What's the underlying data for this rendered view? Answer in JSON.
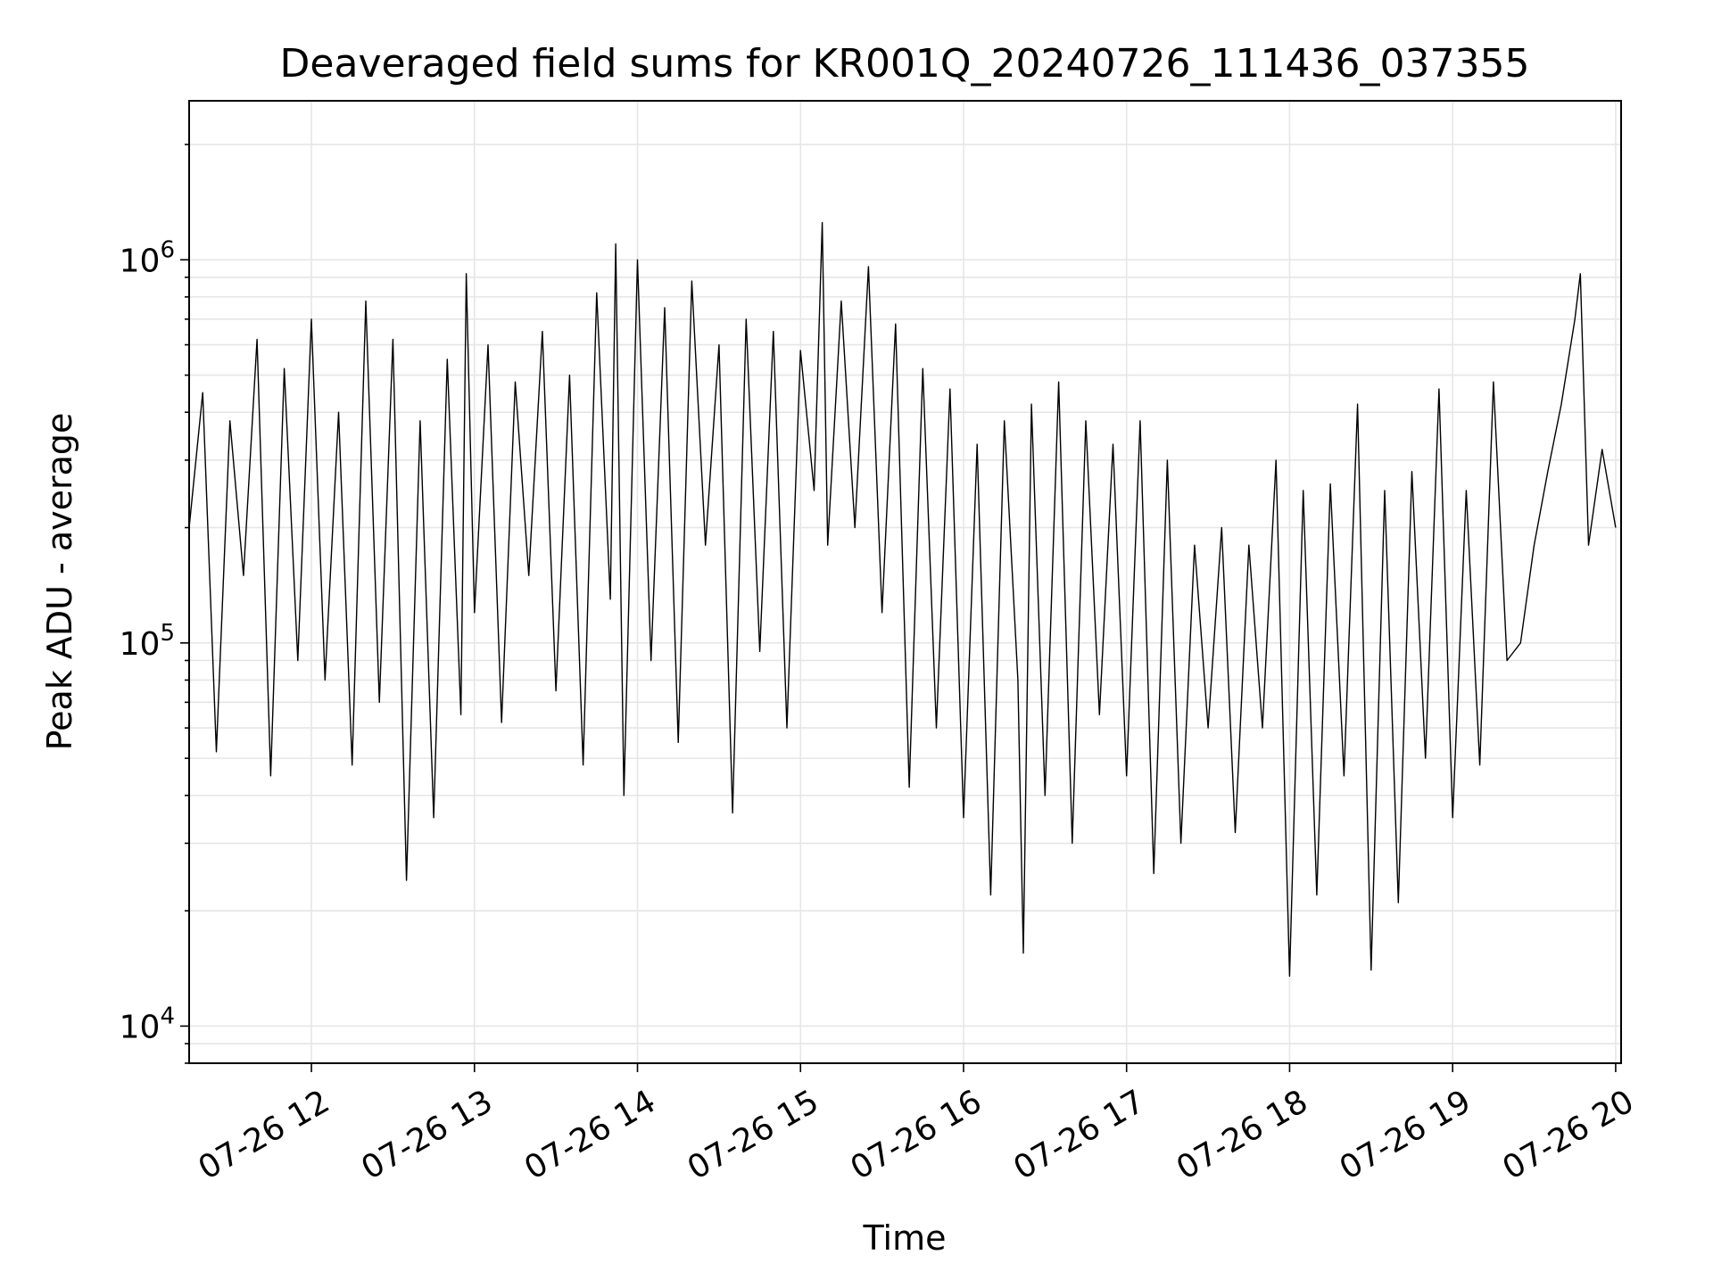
{
  "chart_data": {
    "type": "line",
    "title": "Deaveraged field sums for KR001Q_20240726_111436_037355",
    "xlabel": "Time",
    "ylabel": "Peak ADU - average",
    "yscale": "log",
    "ylim": [
      8000,
      2600000
    ],
    "xlim": [
      "2024-07-26 11:15",
      "2024-07-26 20:02"
    ],
    "grid": true,
    "line_color": "#000000",
    "x_ticks": [
      {
        "value": "2024-07-26 12:00",
        "label": "07-26 12"
      },
      {
        "value": "2024-07-26 13:00",
        "label": "07-26 13"
      },
      {
        "value": "2024-07-26 14:00",
        "label": "07-26 14"
      },
      {
        "value": "2024-07-26 15:00",
        "label": "07-26 15"
      },
      {
        "value": "2024-07-26 16:00",
        "label": "07-26 16"
      },
      {
        "value": "2024-07-26 17:00",
        "label": "07-26 17"
      },
      {
        "value": "2024-07-26 18:00",
        "label": "07-26 18"
      },
      {
        "value": "2024-07-26 19:00",
        "label": "07-26 19"
      },
      {
        "value": "2024-07-26 20:00",
        "label": "07-26 20"
      }
    ],
    "y_ticks": [
      {
        "value": 10000,
        "base": "10",
        "exp": "4"
      },
      {
        "value": 100000,
        "base": "10",
        "exp": "5"
      },
      {
        "value": 1000000,
        "base": "10",
        "exp": "6"
      }
    ],
    "series": [
      {
        "points": [
          [
            "2024-07-26 11:15",
            200000
          ],
          [
            "2024-07-26 11:20",
            450000
          ],
          [
            "2024-07-26 11:25",
            52000
          ],
          [
            "2024-07-26 11:30",
            380000
          ],
          [
            "2024-07-26 11:35",
            150000
          ],
          [
            "2024-07-26 11:40",
            620000
          ],
          [
            "2024-07-26 11:45",
            45000
          ],
          [
            "2024-07-26 11:50",
            520000
          ],
          [
            "2024-07-26 11:55",
            90000
          ],
          [
            "2024-07-26 12:00",
            700000
          ],
          [
            "2024-07-26 12:05",
            80000
          ],
          [
            "2024-07-26 12:10",
            400000
          ],
          [
            "2024-07-26 12:15",
            48000
          ],
          [
            "2024-07-26 12:20",
            780000
          ],
          [
            "2024-07-26 12:25",
            70000
          ],
          [
            "2024-07-26 12:30",
            620000
          ],
          [
            "2024-07-26 12:35",
            24000
          ],
          [
            "2024-07-26 12:40",
            380000
          ],
          [
            "2024-07-26 12:45",
            35000
          ],
          [
            "2024-07-26 12:50",
            550000
          ],
          [
            "2024-07-26 12:55",
            65000
          ],
          [
            "2024-07-26 12:57",
            920000
          ],
          [
            "2024-07-26 13:00",
            120000
          ],
          [
            "2024-07-26 13:05",
            600000
          ],
          [
            "2024-07-26 13:10",
            62000
          ],
          [
            "2024-07-26 13:15",
            480000
          ],
          [
            "2024-07-26 13:20",
            150000
          ],
          [
            "2024-07-26 13:25",
            650000
          ],
          [
            "2024-07-26 13:30",
            75000
          ],
          [
            "2024-07-26 13:35",
            500000
          ],
          [
            "2024-07-26 13:40",
            48000
          ],
          [
            "2024-07-26 13:45",
            820000
          ],
          [
            "2024-07-26 13:50",
            130000
          ],
          [
            "2024-07-26 13:52",
            1100000
          ],
          [
            "2024-07-26 13:55",
            40000
          ],
          [
            "2024-07-26 14:00",
            1000000
          ],
          [
            "2024-07-26 14:05",
            90000
          ],
          [
            "2024-07-26 14:10",
            750000
          ],
          [
            "2024-07-26 14:15",
            55000
          ],
          [
            "2024-07-26 14:20",
            880000
          ],
          [
            "2024-07-26 14:25",
            180000
          ],
          [
            "2024-07-26 14:30",
            600000
          ],
          [
            "2024-07-26 14:35",
            36000
          ],
          [
            "2024-07-26 14:40",
            700000
          ],
          [
            "2024-07-26 14:45",
            95000
          ],
          [
            "2024-07-26 14:50",
            650000
          ],
          [
            "2024-07-26 14:55",
            60000
          ],
          [
            "2024-07-26 15:00",
            580000
          ],
          [
            "2024-07-26 15:05",
            250000
          ],
          [
            "2024-07-26 15:08",
            1250000
          ],
          [
            "2024-07-26 15:10",
            180000
          ],
          [
            "2024-07-26 15:15",
            780000
          ],
          [
            "2024-07-26 15:20",
            200000
          ],
          [
            "2024-07-26 15:25",
            960000
          ],
          [
            "2024-07-26 15:30",
            120000
          ],
          [
            "2024-07-26 15:35",
            680000
          ],
          [
            "2024-07-26 15:40",
            42000
          ],
          [
            "2024-07-26 15:45",
            520000
          ],
          [
            "2024-07-26 15:50",
            60000
          ],
          [
            "2024-07-26 15:55",
            460000
          ],
          [
            "2024-07-26 16:00",
            35000
          ],
          [
            "2024-07-26 16:05",
            330000
          ],
          [
            "2024-07-26 16:10",
            22000
          ],
          [
            "2024-07-26 16:15",
            380000
          ],
          [
            "2024-07-26 16:20",
            80000
          ],
          [
            "2024-07-26 16:22",
            15500
          ],
          [
            "2024-07-26 16:25",
            420000
          ],
          [
            "2024-07-26 16:30",
            40000
          ],
          [
            "2024-07-26 16:35",
            480000
          ],
          [
            "2024-07-26 16:40",
            30000
          ],
          [
            "2024-07-26 16:45",
            380000
          ],
          [
            "2024-07-26 16:50",
            65000
          ],
          [
            "2024-07-26 16:55",
            330000
          ],
          [
            "2024-07-26 17:00",
            45000
          ],
          [
            "2024-07-26 17:05",
            380000
          ],
          [
            "2024-07-26 17:10",
            25000
          ],
          [
            "2024-07-26 17:15",
            300000
          ],
          [
            "2024-07-26 17:20",
            30000
          ],
          [
            "2024-07-26 17:25",
            180000
          ],
          [
            "2024-07-26 17:30",
            60000
          ],
          [
            "2024-07-26 17:35",
            200000
          ],
          [
            "2024-07-26 17:40",
            32000
          ],
          [
            "2024-07-26 17:45",
            180000
          ],
          [
            "2024-07-26 17:50",
            60000
          ],
          [
            "2024-07-26 17:55",
            300000
          ],
          [
            "2024-07-26 18:00",
            13500
          ],
          [
            "2024-07-26 18:05",
            250000
          ],
          [
            "2024-07-26 18:10",
            22000
          ],
          [
            "2024-07-26 18:15",
            260000
          ],
          [
            "2024-07-26 18:20",
            45000
          ],
          [
            "2024-07-26 18:25",
            420000
          ],
          [
            "2024-07-26 18:30",
            14000
          ],
          [
            "2024-07-26 18:35",
            250000
          ],
          [
            "2024-07-26 18:40",
            21000
          ],
          [
            "2024-07-26 18:45",
            280000
          ],
          [
            "2024-07-26 18:50",
            50000
          ],
          [
            "2024-07-26 18:55",
            460000
          ],
          [
            "2024-07-26 19:00",
            35000
          ],
          [
            "2024-07-26 19:05",
            250000
          ],
          [
            "2024-07-26 19:10",
            48000
          ],
          [
            "2024-07-26 19:15",
            480000
          ],
          [
            "2024-07-26 19:20",
            90000
          ],
          [
            "2024-07-26 19:25",
            100000
          ],
          [
            "2024-07-26 19:30",
            180000
          ],
          [
            "2024-07-26 19:35",
            280000
          ],
          [
            "2024-07-26 19:40",
            420000
          ],
          [
            "2024-07-26 19:45",
            700000
          ],
          [
            "2024-07-26 19:47",
            920000
          ],
          [
            "2024-07-26 19:50",
            180000
          ],
          [
            "2024-07-26 19:55",
            320000
          ],
          [
            "2024-07-26 20:00",
            200000
          ]
        ]
      }
    ]
  }
}
